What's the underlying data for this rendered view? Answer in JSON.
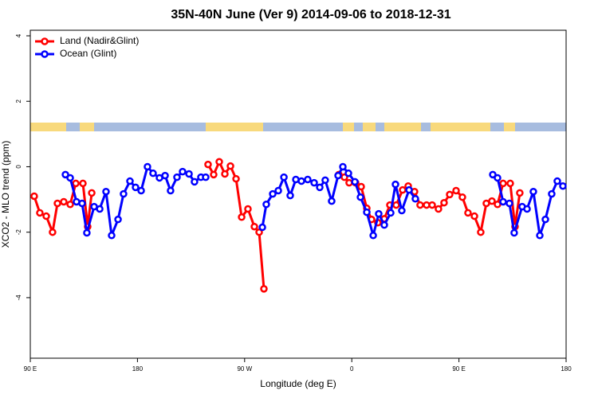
{
  "chart_data": {
    "type": "line",
    "title": "35N-40N June (Ver 9)   2014-09-06 to 2018-12-31",
    "x_label": "Longitude (deg E)",
    "y_label": "XCO2 - MLO trend (ppm)",
    "xlim": [
      90,
      540
    ],
    "xticks": [
      {
        "value": 90,
        "label": "90 E"
      },
      {
        "value": 180,
        "label": "180"
      },
      {
        "value": 270,
        "label": "90 W"
      },
      {
        "value": 360,
        "label": "0"
      },
      {
        "value": 450,
        "label": "90 E"
      },
      {
        "value": 540,
        "label": "180"
      }
    ],
    "ylim": [
      -5.85,
      4.17
    ],
    "yticks": [
      4,
      2,
      0,
      -2,
      -4
    ],
    "legend": "top-left",
    "series": [
      {
        "name": "Land (Nadir&Glint)",
        "color": "#ff0000",
        "x": [
          93.3,
          98.0,
          103.4,
          108.7,
          112.8,
          118.1,
          123.5,
          128.2,
          134.2,
          138.2,
          141.6,
          null,
          239.3,
          244.0,
          248.7,
          253.4,
          258.1,
          262.8,
          267.5,
          272.8,
          278.2,
          282.2,
          286.2,
          null,
          349.1,
          353.8,
          357.8,
          363.2,
          367.9,
          372.6,
          376.6,
          381.9,
          387.3,
          392.0,
          397.3,
          402.7,
          407.4,
          412.7,
          417.4,
          422.8,
          427.5,
          432.8,
          437.5,
          442.2,
          447.6,
          452.9,
          457.6,
          463.0,
          468.3,
          473.0,
          477.7,
          482.4,
          487.1,
          493.1,
          497.1,
          501.1
        ],
        "values": [
          -0.9,
          -1.41,
          -1.51,
          -2.0,
          -1.12,
          -1.07,
          -1.15,
          -0.51,
          -0.51,
          -1.83,
          -0.8,
          null,
          0.07,
          -0.24,
          0.15,
          -0.22,
          0.02,
          -0.37,
          -1.54,
          -1.29,
          -1.83,
          -2.0,
          -3.73,
          null,
          -0.24,
          -0.32,
          -0.49,
          -0.49,
          -0.61,
          -1.27,
          -1.61,
          -1.71,
          -1.59,
          -1.17,
          -1.17,
          -0.71,
          -0.59,
          -0.76,
          -1.17,
          -1.17,
          -1.17,
          -1.29,
          -1.1,
          -0.85,
          -0.73,
          -0.93,
          -1.41,
          -1.51,
          -2.0,
          -1.12,
          -1.05,
          -1.15,
          -0.51,
          -0.51,
          -1.83,
          -0.8
        ]
      },
      {
        "name": "Ocean (Glint)",
        "color": "#0000ff",
        "x": [
          119.5,
          123.5,
          128.8,
          133.5,
          137.5,
          143.6,
          148.3,
          153.6,
          158.3,
          163.7,
          168.3,
          173.7,
          178.4,
          183.1,
          188.4,
          193.1,
          198.5,
          203.2,
          207.8,
          213.2,
          217.9,
          223.3,
          227.9,
          233.3,
          237.3,
          null,
          284.9,
          288.2,
          293.6,
          298.3,
          303.0,
          308.3,
          313.0,
          317.7,
          323.0,
          328.4,
          333.1,
          337.7,
          343.1,
          348.5,
          352.5,
          357.2,
          362.6,
          367.3,
          372.6,
          378.0,
          382.6,
          387.3,
          392.7,
          396.7,
          402.0,
          408.1,
          413.4,
          null,
          478.4,
          482.4,
          487.1,
          492.4,
          496.4,
          503.1,
          507.2,
          512.5,
          517.9,
          522.6,
          527.9,
          532.6,
          537.3
        ],
        "values": [
          -0.24,
          -0.34,
          -1.07,
          -1.12,
          -2.02,
          -1.22,
          -1.29,
          -0.76,
          -2.1,
          -1.61,
          -0.83,
          -0.44,
          -0.63,
          -0.73,
          0.0,
          -0.2,
          -0.34,
          -0.27,
          -0.73,
          -0.32,
          -0.15,
          -0.22,
          -0.46,
          -0.32,
          -0.32,
          null,
          -1.85,
          -1.15,
          -0.83,
          -0.73,
          -0.32,
          -0.88,
          -0.39,
          -0.44,
          -0.39,
          -0.49,
          -0.63,
          -0.41,
          -1.05,
          -0.27,
          0.0,
          -0.2,
          -0.46,
          -0.93,
          -1.39,
          -2.1,
          -1.44,
          -1.78,
          -1.41,
          -0.54,
          -1.34,
          -0.71,
          -0.98,
          null,
          -0.24,
          -0.34,
          -1.07,
          -1.12,
          -2.02,
          -1.22,
          -1.29,
          -0.76,
          -2.1,
          -1.61,
          -0.83,
          -0.44,
          -0.59
        ]
      }
    ]
  }
}
